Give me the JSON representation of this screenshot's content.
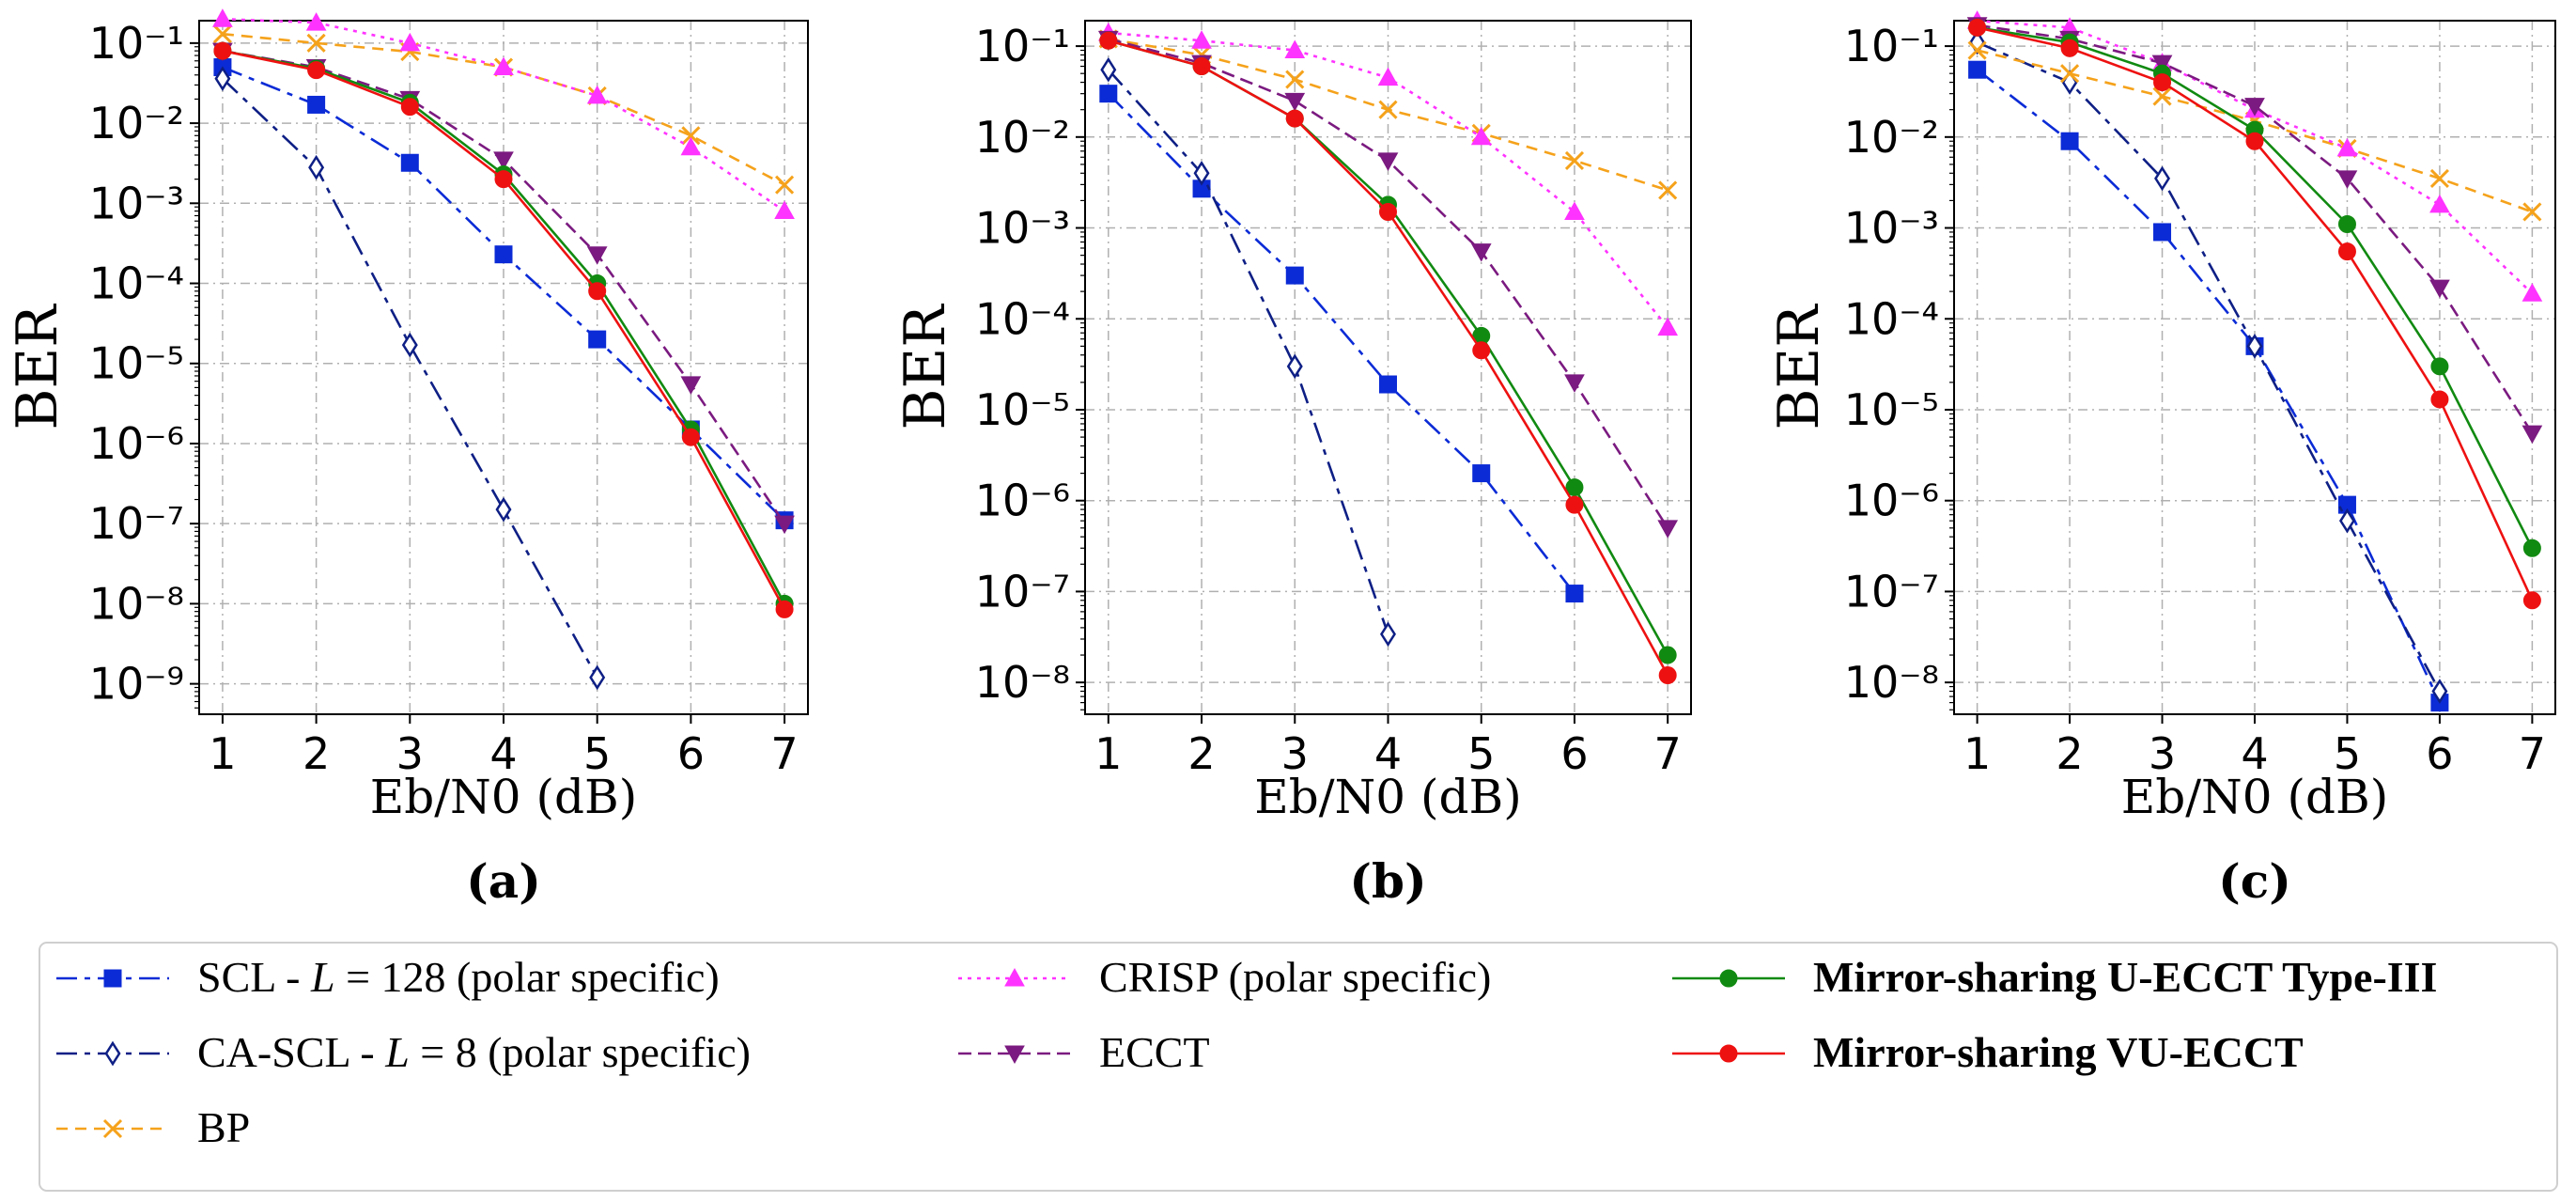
{
  "series_styles": [
    {
      "name": "SCL - L = 128 (polar specific)",
      "color": "#0b2bd6",
      "dash": "22,8,6,8",
      "marker": "square",
      "fill": true
    },
    {
      "name": "CA-SCL - L = 8 (polar specific)",
      "color": "#0e1f85",
      "dash": "22,8,6,8",
      "marker": "diamond",
      "fill": false
    },
    {
      "name": "BP",
      "color": "#f5a21b",
      "dash": "12,8",
      "marker": "x",
      "fill": true
    },
    {
      "name": "CRISP (polar specific)",
      "color": "#ff33ff",
      "dash": "4,6",
      "marker": "triangle-up",
      "fill": true
    },
    {
      "name": "ECCT",
      "color": "#7b1a80",
      "dash": "14,7",
      "marker": "triangle-down",
      "fill": true
    },
    {
      "name": "Mirror-sharing U-ECCT Type-III",
      "color": "#118a11",
      "dash": "",
      "marker": "circle",
      "fill": true
    },
    {
      "name": "Mirror-sharing VU-ECCT",
      "color": "#ee1111",
      "dash": "",
      "marker": "circle",
      "fill": true
    }
  ],
  "legend": {
    "items": [
      {
        "prefix": "SCL - ",
        "var": "L",
        "suffix": " = 128 (polar specific)",
        "bold": false
      },
      {
        "prefix": "CA-SCL - ",
        "var": "L",
        "suffix": " = 8 (polar specific)",
        "bold": false
      },
      {
        "prefix": "BP",
        "var": "",
        "suffix": "",
        "bold": false
      },
      {
        "prefix": "CRISP (polar specific)",
        "var": "",
        "suffix": "",
        "bold": false
      },
      {
        "prefix": "ECCT",
        "var": "",
        "suffix": "",
        "bold": false
      },
      {
        "prefix": "Mirror-sharing U-ECCT Type-III",
        "var": "",
        "suffix": "",
        "bold": true
      },
      {
        "prefix": "Mirror-sharing VU-ECCT",
        "var": "",
        "suffix": "",
        "bold": true
      }
    ]
  },
  "chart_data": [
    {
      "type": "line",
      "panel_label": "(a)",
      "xlabel": "Eb/N0 (dB)",
      "ylabel": "BER",
      "y_scale": "log",
      "xlim": [
        1,
        7
      ],
      "ylim_exp": [
        -9,
        -1
      ],
      "xticks": [
        1,
        2,
        3,
        4,
        5,
        6,
        7
      ],
      "yticks_exp": [
        -9,
        -8,
        -7,
        -6,
        -5,
        -4,
        -3,
        -2,
        -1
      ],
      "grid": true,
      "series": [
        {
          "name": "SCL - L = 128 (polar specific)",
          "x": [
            1,
            2,
            3,
            4,
            5,
            6,
            7
          ],
          "values": [
            0.05,
            0.017,
            0.0032,
            0.00023,
            2e-05,
            1.5e-06,
            1.1e-07
          ]
        },
        {
          "name": "CA-SCL - L = 8 (polar specific)",
          "x": [
            1,
            2,
            3,
            4,
            5
          ],
          "values": [
            0.036,
            0.0028,
            1.7e-05,
            1.5e-07,
            1.2e-09
          ]
        },
        {
          "name": "BP",
          "x": [
            1,
            2,
            3,
            4,
            5,
            6,
            7
          ],
          "values": [
            0.13,
            0.1,
            0.078,
            0.05,
            0.022,
            0.007,
            0.0017
          ]
        },
        {
          "name": "CRISP (polar specific)",
          "x": [
            1,
            2,
            3,
            4,
            5,
            6,
            7
          ],
          "values": [
            0.2,
            0.18,
            0.1,
            0.05,
            0.022,
            0.005,
            0.0008
          ]
        },
        {
          "name": "ECCT",
          "x": [
            1,
            2,
            3,
            4,
            5,
            6,
            7
          ],
          "values": [
            0.08,
            0.05,
            0.02,
            0.0035,
            0.00023,
            5.5e-06,
            1e-07
          ]
        },
        {
          "name": "Mirror-sharing U-ECCT Type-III",
          "x": [
            1,
            2,
            3,
            4,
            5,
            6,
            7
          ],
          "values": [
            0.08,
            0.048,
            0.018,
            0.0023,
            0.0001,
            1.5e-06,
            1e-08
          ]
        },
        {
          "name": "Mirror-sharing VU-ECCT",
          "x": [
            1,
            2,
            3,
            4,
            5,
            6,
            7
          ],
          "values": [
            0.08,
            0.046,
            0.016,
            0.002,
            8e-05,
            1.2e-06,
            8.5e-09
          ]
        }
      ]
    },
    {
      "type": "line",
      "panel_label": "(b)",
      "xlabel": "Eb/N0 (dB)",
      "ylabel": "BER",
      "y_scale": "log",
      "xlim": [
        1,
        7
      ],
      "ylim_exp": [
        -8,
        -1
      ],
      "xticks": [
        1,
        2,
        3,
        4,
        5,
        6,
        7
      ],
      "yticks_exp": [
        -8,
        -7,
        -6,
        -5,
        -4,
        -3,
        -2,
        -1
      ],
      "grid": true,
      "series": [
        {
          "name": "SCL - L = 128 (polar specific)",
          "x": [
            1,
            2,
            3,
            4,
            5,
            6
          ],
          "values": [
            0.03,
            0.0027,
            0.0003,
            1.9e-05,
            2e-06,
            9.5e-08
          ]
        },
        {
          "name": "CA-SCL - L = 8 (polar specific)",
          "x": [
            1,
            2,
            3,
            4
          ],
          "values": [
            0.055,
            0.004,
            3e-05,
            3.4e-08
          ]
        },
        {
          "name": "BP",
          "x": [
            1,
            2,
            3,
            4,
            5,
            6,
            7
          ],
          "values": [
            0.12,
            0.08,
            0.043,
            0.02,
            0.011,
            0.0055,
            0.0026
          ]
        },
        {
          "name": "CRISP (polar specific)",
          "x": [
            1,
            2,
            3,
            4,
            5,
            6,
            7
          ],
          "values": [
            0.14,
            0.115,
            0.09,
            0.045,
            0.01,
            0.0015,
            8e-05
          ]
        },
        {
          "name": "ECCT",
          "x": [
            1,
            2,
            3,
            4,
            5,
            6,
            7
          ],
          "values": [
            0.12,
            0.065,
            0.025,
            0.0055,
            0.00055,
            2e-05,
            5e-07
          ]
        },
        {
          "name": "Mirror-sharing U-ECCT Type-III",
          "x": [
            1,
            2,
            3,
            4,
            5,
            6,
            7
          ],
          "values": [
            0.115,
            0.06,
            0.016,
            0.0018,
            6.5e-05,
            1.4e-06,
            2e-08
          ]
        },
        {
          "name": "Mirror-sharing VU-ECCT",
          "x": [
            1,
            2,
            3,
            4,
            5,
            6,
            7
          ],
          "values": [
            0.115,
            0.06,
            0.016,
            0.0015,
            4.5e-05,
            9e-07,
            1.2e-08
          ]
        }
      ]
    },
    {
      "type": "line",
      "panel_label": "(c)",
      "xlabel": "Eb/N0 (dB)",
      "ylabel": "BER",
      "y_scale": "log",
      "xlim": [
        1,
        7
      ],
      "ylim_exp": [
        -8,
        -1
      ],
      "xticks": [
        1,
        2,
        3,
        4,
        5,
        6,
        7
      ],
      "yticks_exp": [
        -8,
        -7,
        -6,
        -5,
        -4,
        -3,
        -2,
        -1
      ],
      "grid": true,
      "series": [
        {
          "name": "SCL - L = 128 (polar specific)",
          "x": [
            1,
            2,
            3,
            4,
            5,
            6
          ],
          "values": [
            0.055,
            0.009,
            0.0009,
            5e-05,
            9e-07,
            6e-09
          ]
        },
        {
          "name": "CA-SCL - L = 8 (polar specific)",
          "x": [
            1,
            2,
            3,
            4,
            5,
            6
          ],
          "values": [
            0.11,
            0.04,
            0.0035,
            5e-05,
            6e-07,
            8e-09
          ]
        },
        {
          "name": "BP",
          "x": [
            1,
            2,
            3,
            4,
            5,
            6,
            7
          ],
          "values": [
            0.09,
            0.05,
            0.028,
            0.015,
            0.0075,
            0.0035,
            0.0015
          ]
        },
        {
          "name": "CRISP (polar specific)",
          "x": [
            1,
            2,
            3,
            4,
            5,
            6,
            7
          ],
          "values": [
            0.19,
            0.16,
            0.065,
            0.02,
            0.0075,
            0.0018,
            0.00019
          ]
        },
        {
          "name": "ECCT",
          "x": [
            1,
            2,
            3,
            4,
            5,
            6,
            7
          ],
          "values": [
            0.17,
            0.12,
            0.065,
            0.022,
            0.0035,
            0.00022,
            5.5e-06
          ]
        },
        {
          "name": "Mirror-sharing U-ECCT Type-III",
          "x": [
            1,
            2,
            3,
            4,
            5,
            6,
            7
          ],
          "values": [
            0.16,
            0.11,
            0.05,
            0.012,
            0.0011,
            3e-05,
            3e-07
          ]
        },
        {
          "name": "Mirror-sharing VU-ECCT",
          "x": [
            1,
            2,
            3,
            4,
            5,
            6,
            7
          ],
          "values": [
            0.16,
            0.095,
            0.04,
            0.009,
            0.00055,
            1.3e-05,
            8e-08
          ]
        }
      ]
    }
  ]
}
